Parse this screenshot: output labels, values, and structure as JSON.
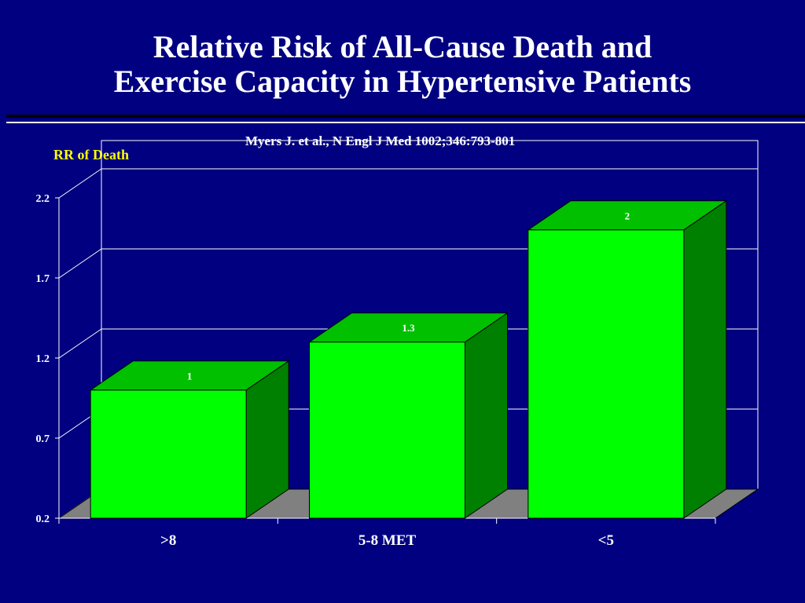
{
  "slide": {
    "title_line1": "Relative Risk of All-Cause Death and",
    "title_line2": "Exercise Capacity in Hypertensive Patients",
    "citation": "Myers J. et al., N Engl J Med 1002;346:793-801"
  },
  "chart_data": {
    "type": "bar",
    "style": "3d",
    "title": "",
    "xlabel": "",
    "ylabel": "RR of Death",
    "categories": [
      ">8",
      "5-8 MET",
      "<5"
    ],
    "values": [
      1,
      1.3,
      2
    ],
    "data_labels": [
      "1",
      "1.3",
      "2"
    ],
    "ylim": [
      0.2,
      2.2
    ],
    "yticks": [
      "0.2",
      "0.7",
      "1.2",
      "1.7",
      "2.2"
    ],
    "grid": true,
    "legend": "none"
  },
  "colors": {
    "background": "#000080",
    "bar_front": "#00ff00",
    "bar_top": "#00c000",
    "bar_side": "#008000",
    "floor": "#808080",
    "axis_title": "#ffff00",
    "text": "#ffffff"
  }
}
